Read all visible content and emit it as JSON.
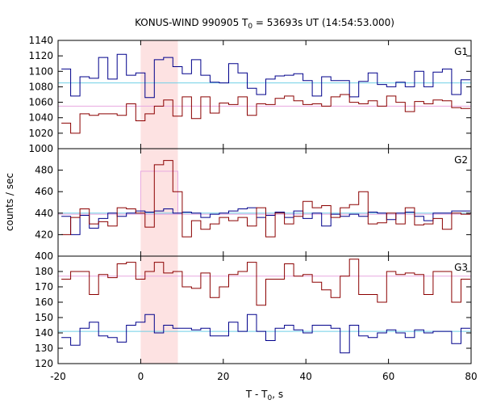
{
  "chart_data": {
    "type": "line",
    "title_prefix": "KONUS-WIND 990905 T",
    "title_sub": "0",
    "title_suffix": " = 53693s UT (14:54:53.000)",
    "xlabel_prefix": "T - T",
    "xlabel_sub": "0",
    "xlabel_suffix": ", s",
    "ylabel": "counts / sec",
    "xlim": [
      -20,
      80
    ],
    "xticks": [
      -20,
      0,
      20,
      40,
      60,
      80
    ],
    "bin_width": 2.25,
    "x_start": -19.2,
    "highlight": {
      "from": 0,
      "to": 9
    },
    "colors": {
      "series_a": "#00008b",
      "series_b": "#8b0000",
      "bg_a": "#6fcfe6",
      "bg_b": "#e8a8e0",
      "highlight": "#fde2e2"
    },
    "panels": [
      {
        "label": "G1",
        "ylim": [
          1000,
          1140
        ],
        "yticks": [
          1000,
          1020,
          1040,
          1060,
          1080,
          1100,
          1120,
          1140
        ],
        "background": {
          "a": 1085,
          "b": 1055
        },
        "series": [
          {
            "key": "a",
            "values": [
              1103,
              1068,
              1093,
              1091,
              1118,
              1090,
              1122,
              1095,
              1098,
              1066,
              1115,
              1118,
              1106,
              1097,
              1115,
              1095,
              1086,
              1085,
              1110,
              1098,
              1078,
              1070,
              1090,
              1094,
              1095,
              1097,
              1088,
              1068,
              1093,
              1088,
              1088,
              1067,
              1087,
              1098,
              1083,
              1080,
              1086,
              1080,
              1100,
              1080,
              1099,
              1103,
              1070,
              1089
            ]
          },
          {
            "key": "b",
            "values": [
              1033,
              1020,
              1045,
              1043,
              1045,
              1045,
              1043,
              1058,
              1036,
              1045,
              1055,
              1063,
              1042,
              1067,
              1039,
              1067,
              1046,
              1059,
              1057,
              1067,
              1043,
              1058,
              1057,
              1065,
              1068,
              1062,
              1057,
              1058,
              1055,
              1067,
              1070,
              1060,
              1058,
              1062,
              1055,
              1068,
              1060,
              1048,
              1061,
              1058,
              1063,
              1062,
              1053,
              1052
            ]
          }
        ]
      },
      {
        "label": "G2",
        "ylim": [
          400,
          500
        ],
        "yticks": [
          400,
          420,
          440,
          460,
          480
        ],
        "background": {
          "a": 440,
          "b": 439
        },
        "series": [
          {
            "key": "a",
            "values": [
              437,
              420,
              438,
              426,
              435,
              440,
              437,
              440,
              442,
              441,
              442,
              444,
              440,
              441,
              440,
              436,
              439,
              440,
              442,
              444,
              445,
              436,
              438,
              441,
              436,
              442,
              435,
              440,
              428,
              439,
              437,
              439,
              437,
              441,
              440,
              434,
              440,
              441,
              437,
              433,
              440,
              440,
              442,
              442
            ]
          },
          {
            "key": "b",
            "values": [
              420,
              436,
              444,
              430,
              432,
              428,
              445,
              444,
              440,
              427,
              485,
              489,
              460,
              418,
              433,
              425,
              430,
              436,
              433,
              436,
              428,
              445,
              418,
              440,
              430,
              437,
              451,
              445,
              447,
              436,
              445,
              448,
              460,
              430,
              431,
              440,
              430,
              445,
              429,
              430,
              435,
              425,
              440,
              439
            ]
          }
        ]
      },
      {
        "label": "G3",
        "ylim": [
          120,
          190
        ],
        "yticks": [
          120,
          130,
          140,
          150,
          160,
          170,
          180
        ],
        "background": {
          "a": 141,
          "b": 177
        },
        "series": [
          {
            "key": "a",
            "values": [
              137,
              132,
              143,
              147,
              138,
              137,
              134,
              145,
              147,
              152,
              140,
              145,
              143,
              143,
              142,
              143,
              138,
              138,
              147,
              141,
              152,
              141,
              135,
              143,
              145,
              142,
              140,
              145,
              145,
              143,
              127,
              145,
              138,
              137,
              140,
              142,
              140,
              137,
              142,
              140,
              141,
              141,
              133,
              143
            ]
          },
          {
            "key": "b",
            "values": [
              175,
              180,
              180,
              165,
              178,
              176,
              185,
              186,
              175,
              180,
              186,
              179,
              180,
              170,
              169,
              179,
              163,
              170,
              178,
              180,
              186,
              158,
              175,
              175,
              185,
              177,
              178,
              173,
              168,
              163,
              177,
              188,
              165,
              165,
              160,
              180,
              178,
              179,
              178,
              165,
              180,
              180,
              160,
              175
            ]
          }
        ]
      }
    ]
  }
}
